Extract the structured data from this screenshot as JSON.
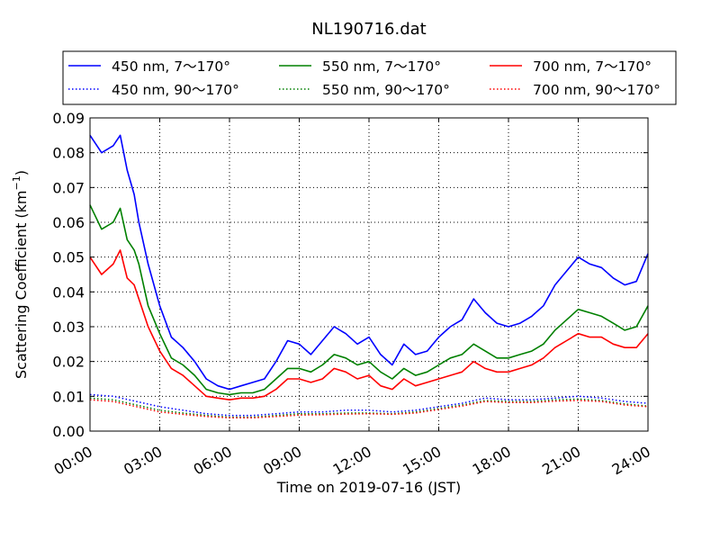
{
  "chart_data": {
    "type": "line",
    "title": "NL190716.dat",
    "xlabel": "Time on 2019-07-16 (JST)",
    "ylabel": "Scattering Coefficient (km",
    "ylabel_sup": "−1",
    "ylabel_close": ")",
    "xlim": [
      0,
      24
    ],
    "ylim": [
      0,
      0.09
    ],
    "x_ticks": [
      0,
      3,
      6,
      9,
      12,
      15,
      18,
      21,
      24
    ],
    "x_tick_labels": [
      "00:00",
      "03:00",
      "06:00",
      "09:00",
      "12:00",
      "15:00",
      "18:00",
      "21:00",
      "24:00"
    ],
    "y_ticks": [
      0,
      0.01,
      0.02,
      0.03,
      0.04,
      0.05,
      0.06,
      0.07,
      0.08,
      0.09
    ],
    "y_tick_labels": [
      "0.00",
      "0.01",
      "0.02",
      "0.03",
      "0.04",
      "0.05",
      "0.06",
      "0.07",
      "0.08",
      "0.09"
    ],
    "grid": true,
    "legend_position": "top",
    "series": [
      {
        "name": "450 nm, 7～170°",
        "color": "#0000ff",
        "style": "solid",
        "x": [
          0,
          0.5,
          1,
          1.3,
          1.6,
          1.9,
          2.1,
          2.5,
          3,
          3.5,
          4,
          4.5,
          5,
          5.5,
          6,
          6.5,
          7,
          7.5,
          8,
          8.5,
          9,
          9.5,
          10,
          10.5,
          11,
          11.5,
          12,
          12.5,
          13,
          13.5,
          14,
          14.5,
          15,
          15.5,
          16,
          16.5,
          17,
          17.5,
          18,
          18.5,
          19,
          19.5,
          20,
          20.5,
          21,
          21.5,
          22,
          22.5,
          23,
          23.5,
          24
        ],
        "y": [
          0.085,
          0.08,
          0.082,
          0.085,
          0.075,
          0.068,
          0.06,
          0.048,
          0.036,
          0.027,
          0.024,
          0.02,
          0.015,
          0.013,
          0.012,
          0.013,
          0.014,
          0.015,
          0.02,
          0.026,
          0.025,
          0.022,
          0.026,
          0.03,
          0.028,
          0.025,
          0.027,
          0.022,
          0.019,
          0.025,
          0.022,
          0.023,
          0.027,
          0.03,
          0.032,
          0.038,
          0.034,
          0.031,
          0.03,
          0.031,
          0.033,
          0.036,
          0.042,
          0.046,
          0.05,
          0.048,
          0.047,
          0.044,
          0.042,
          0.043,
          0.051
        ]
      },
      {
        "name": "550 nm, 7～170°",
        "color": "#008000",
        "style": "solid",
        "x": [
          0,
          0.5,
          1,
          1.3,
          1.6,
          1.9,
          2.1,
          2.5,
          3,
          3.5,
          4,
          4.5,
          5,
          5.5,
          6,
          6.5,
          7,
          7.5,
          8,
          8.5,
          9,
          9.5,
          10,
          10.5,
          11,
          11.5,
          12,
          12.5,
          13,
          13.5,
          14,
          14.5,
          15,
          15.5,
          16,
          16.5,
          17,
          17.5,
          18,
          18.5,
          19,
          19.5,
          20,
          20.5,
          21,
          21.5,
          22,
          22.5,
          23,
          23.5,
          24
        ],
        "y": [
          0.065,
          0.058,
          0.06,
          0.064,
          0.055,
          0.052,
          0.048,
          0.036,
          0.028,
          0.021,
          0.019,
          0.016,
          0.012,
          0.011,
          0.0105,
          0.011,
          0.011,
          0.012,
          0.015,
          0.018,
          0.018,
          0.017,
          0.019,
          0.022,
          0.021,
          0.019,
          0.02,
          0.017,
          0.015,
          0.018,
          0.016,
          0.017,
          0.019,
          0.021,
          0.022,
          0.025,
          0.023,
          0.021,
          0.021,
          0.022,
          0.023,
          0.025,
          0.029,
          0.032,
          0.035,
          0.034,
          0.033,
          0.031,
          0.029,
          0.03,
          0.036
        ]
      },
      {
        "name": "700 nm, 7～170°",
        "color": "#ff0000",
        "style": "solid",
        "x": [
          0,
          0.5,
          1,
          1.3,
          1.6,
          1.9,
          2.1,
          2.5,
          3,
          3.5,
          4,
          4.5,
          5,
          5.5,
          6,
          6.5,
          7,
          7.5,
          8,
          8.5,
          9,
          9.5,
          10,
          10.5,
          11,
          11.5,
          12,
          12.5,
          13,
          13.5,
          14,
          14.5,
          15,
          15.5,
          16,
          16.5,
          17,
          17.5,
          18,
          18.5,
          19,
          19.5,
          20,
          20.5,
          21,
          21.5,
          22,
          22.5,
          23,
          23.5,
          24
        ],
        "y": [
          0.05,
          0.045,
          0.048,
          0.052,
          0.044,
          0.042,
          0.038,
          0.03,
          0.023,
          0.018,
          0.016,
          0.013,
          0.01,
          0.0095,
          0.009,
          0.0095,
          0.0095,
          0.01,
          0.012,
          0.015,
          0.015,
          0.014,
          0.015,
          0.018,
          0.017,
          0.015,
          0.016,
          0.013,
          0.012,
          0.015,
          0.013,
          0.014,
          0.015,
          0.016,
          0.017,
          0.02,
          0.018,
          0.017,
          0.017,
          0.018,
          0.019,
          0.021,
          0.024,
          0.026,
          0.028,
          0.027,
          0.027,
          0.025,
          0.024,
          0.024,
          0.028
        ]
      },
      {
        "name": "450 nm, 90～170°",
        "color": "#0000ff",
        "style": "dotted",
        "x": [
          0,
          1,
          2,
          3,
          4,
          5,
          6,
          7,
          8,
          9,
          10,
          11,
          12,
          13,
          14,
          15,
          16,
          17,
          18,
          19,
          20,
          21,
          22,
          23,
          24
        ],
        "y": [
          0.0105,
          0.01,
          0.0085,
          0.007,
          0.006,
          0.005,
          0.0045,
          0.0045,
          0.005,
          0.0055,
          0.0055,
          0.006,
          0.006,
          0.0055,
          0.006,
          0.007,
          0.008,
          0.0095,
          0.009,
          0.009,
          0.0095,
          0.01,
          0.0095,
          0.0085,
          0.008
        ]
      },
      {
        "name": "550 nm, 90～170°",
        "color": "#008000",
        "style": "dotted",
        "x": [
          0,
          1,
          2,
          3,
          4,
          5,
          6,
          7,
          8,
          9,
          10,
          11,
          12,
          13,
          14,
          15,
          16,
          17,
          18,
          19,
          20,
          21,
          22,
          23,
          24
        ],
        "y": [
          0.0095,
          0.009,
          0.0075,
          0.006,
          0.0052,
          0.0045,
          0.004,
          0.004,
          0.0045,
          0.005,
          0.005,
          0.0052,
          0.0052,
          0.005,
          0.0055,
          0.0065,
          0.0075,
          0.0088,
          0.0085,
          0.0085,
          0.009,
          0.0092,
          0.0088,
          0.0078,
          0.0072
        ]
      },
      {
        "name": "700 nm, 90～170°",
        "color": "#ff0000",
        "style": "dotted",
        "x": [
          0,
          1,
          2,
          3,
          4,
          5,
          6,
          7,
          8,
          9,
          10,
          11,
          12,
          13,
          14,
          15,
          16,
          17,
          18,
          19,
          20,
          21,
          22,
          23,
          24
        ],
        "y": [
          0.009,
          0.0085,
          0.007,
          0.0055,
          0.0048,
          0.0042,
          0.0038,
          0.0038,
          0.0042,
          0.0046,
          0.0047,
          0.0049,
          0.005,
          0.0048,
          0.0052,
          0.0062,
          0.0072,
          0.0085,
          0.0082,
          0.0082,
          0.0086,
          0.0088,
          0.0085,
          0.0075,
          0.007
        ]
      }
    ]
  }
}
